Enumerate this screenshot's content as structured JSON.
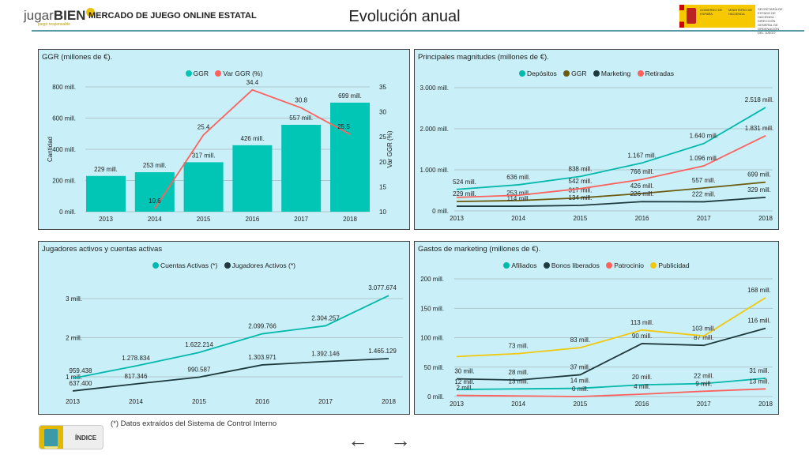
{
  "header": {
    "logo_text_a": "jugar",
    "logo_text_b": "BIEN",
    "logo_tagline": "juego responsable",
    "app_title": "MERCADO DE JUEGO ONLINE ESTATAL",
    "page_title": "Evolución anual",
    "gov_text_1": "GOBIERNO DE ESPAÑA",
    "gov_text_2": "MINISTERIO DE HACIENDA",
    "gov_text_3": "SECRETARÍA DE ESTADO DE HACIENDA · DIRECCIÓN GENERAL DE ORDENACIÓN DEL JUEGO"
  },
  "footer": {
    "note": "(*) Datos extraídos del Sistema de Control Interno",
    "index_label": "ÍNDICE",
    "prev_icon": "arrow-left-icon",
    "next_icon": "arrow-right-icon"
  },
  "chart_data": [
    {
      "id": "ggr",
      "type": "bar+line",
      "title": "GGR  (millones de €).",
      "categories": [
        "2013",
        "2014",
        "2015",
        "2016",
        "2017",
        "2018"
      ],
      "ylabel": "Cantidad",
      "y2label": "Var GGR (%)",
      "ylim": [
        0,
        800
      ],
      "y2lim": [
        10,
        35
      ],
      "yticks": [
        "0 mill.",
        "200 mill.",
        "400 mill.",
        "600 mill.",
        "800 mill."
      ],
      "y2ticks": [
        "10",
        "15",
        "20",
        "25",
        "30",
        "35"
      ],
      "series": [
        {
          "name": "GGR",
          "kind": "bar",
          "color": "#01c5b5",
          "values": [
            229,
            253,
            317,
            426,
            557,
            699
          ],
          "labels": [
            "229 mill.",
            "253 mill.",
            "317 mill.",
            "426 mill.",
            "557 mill.",
            "699 mill."
          ]
        },
        {
          "name": "Var GGR (%)",
          "kind": "line",
          "axis": "right",
          "color": "#fd625e",
          "values": [
            null,
            10.6,
            25.4,
            34.4,
            30.8,
            25.5
          ],
          "labels": [
            null,
            "10.6",
            "25.4",
            "34.4",
            "30.8",
            "25.5"
          ]
        }
      ]
    },
    {
      "id": "magn",
      "type": "line",
      "title": "Principales magnitudes (millones de €).",
      "categories": [
        "2013",
        "2014",
        "2015",
        "2016",
        "2017",
        "2018"
      ],
      "ylim": [
        0,
        3000
      ],
      "yticks": [
        "0 mill.",
        "1.000 mill.",
        "2.000 mill.",
        "3.000 mill."
      ],
      "series": [
        {
          "name": "Depósitos",
          "color": "#01b8aa",
          "values": [
            524,
            636,
            838,
            1167,
            1640,
            2518
          ],
          "labels": [
            "524 mill.",
            "636 mill.",
            "838 mill.",
            "1.167 mill.",
            "1.640 mill.",
            "2.518 mill."
          ]
        },
        {
          "name": "GGR",
          "color": "#6b5b0f",
          "values": [
            229,
            253,
            317,
            426,
            557,
            699
          ],
          "labels": [
            "229 mill.",
            "253 mill.",
            "317 mill.",
            "426 mill.",
            "557 mill.",
            "699 mill."
          ]
        },
        {
          "name": "Marketing",
          "color": "#1e3a3f",
          "values": [
            114,
            114,
            134,
            226,
            222,
            329
          ],
          "labels": [
            null,
            "114 mill.",
            "134 mill.",
            "226 mill.",
            "222 mill.",
            "329 mill."
          ]
        },
        {
          "name": "Retiradas",
          "color": "#fd625e",
          "values": [
            330,
            380,
            542,
            766,
            1096,
            1831
          ],
          "labels": [
            null,
            null,
            "542 mill.",
            "766 mill.",
            "1.096 mill.",
            "1.831 mill."
          ]
        }
      ]
    },
    {
      "id": "jug",
      "type": "line",
      "title": "Jugadores activos y cuentas activas",
      "categories": [
        "2013",
        "2014",
        "2015",
        "2016",
        "2017",
        "2018"
      ],
      "yticks": [
        "1 mill.",
        "2 mill.",
        "3 mill."
      ],
      "series": [
        {
          "name": "Cuentas Activas (*)",
          "color": "#01b8aa",
          "values": [
            959438,
            1278834,
            1622214,
            2099766,
            2304257,
            3077674
          ],
          "labels": [
            "959.438",
            "1.278.834",
            "1.622.214",
            "2.099.766",
            "2.304.257",
            "3.077.674"
          ]
        },
        {
          "name": "Jugadores Activos (*)",
          "color": "#1e3a3f",
          "values": [
            637400,
            817346,
            990587,
            1303971,
            1392146,
            1465129
          ],
          "labels": [
            "637.400",
            "817.346",
            "990.587",
            "1.303.971",
            "1.392.146",
            "1.465.129"
          ]
        }
      ]
    },
    {
      "id": "mkt",
      "type": "line",
      "title": "Gastos de marketing (millones de €).",
      "categories": [
        "2013",
        "2014",
        "2015",
        "2016",
        "2017",
        "2018"
      ],
      "ylim": [
        0,
        200
      ],
      "yticks": [
        "0 mill.",
        "50 mill.",
        "100 mill.",
        "150 mill.",
        "200 mill."
      ],
      "series": [
        {
          "name": "Afiliados",
          "color": "#01b8aa",
          "values": [
            12,
            13,
            14,
            20,
            22,
            31
          ],
          "labels": [
            "12 mill.",
            "13 mill.",
            "14 mill.",
            "20 mill.",
            "22 mill.",
            "31 mill."
          ]
        },
        {
          "name": "Bonos liberados",
          "color": "#1e3a3f",
          "values": [
            30,
            28,
            37,
            90,
            87,
            116
          ],
          "labels": [
            "30 mill.",
            "28 mill.",
            "37 mill.",
            "90 mill.",
            "87 mill.",
            "116 mill."
          ]
        },
        {
          "name": "Patrocinio",
          "color": "#fd625e",
          "values": [
            2,
            1,
            0,
            4,
            9,
            13
          ],
          "labels": [
            "2 mill.",
            null,
            "0 mill.",
            "4 mill.",
            "9 mill.",
            "13 mill."
          ]
        },
        {
          "name": "Publicidad",
          "color": "#f2c80f",
          "values": [
            68,
            73,
            83,
            113,
            103,
            168
          ],
          "labels": [
            null,
            "73 mill.",
            "83 mill.",
            "113 mill.",
            "103 mill.",
            "168 mill."
          ]
        }
      ]
    }
  ]
}
